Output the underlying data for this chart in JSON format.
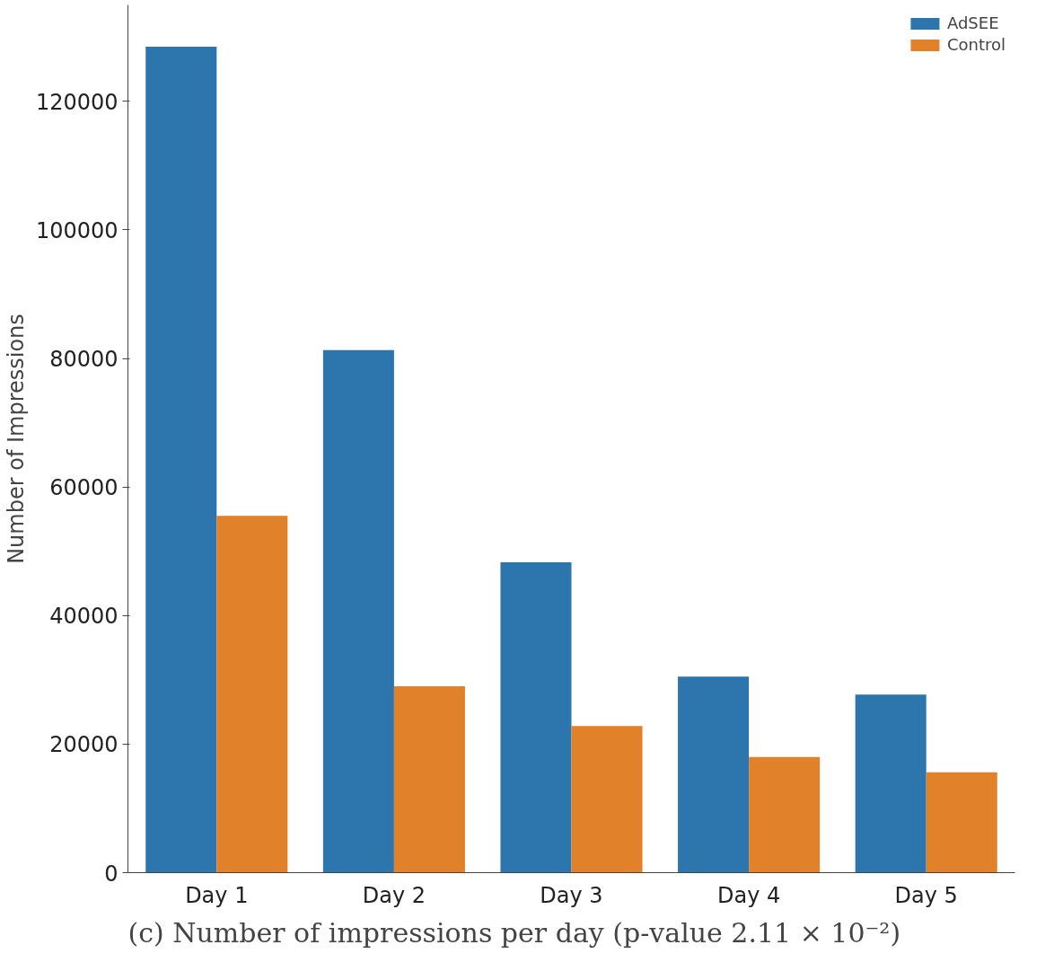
{
  "chart_data": {
    "type": "bar",
    "ylabel": "Number of Impressions",
    "categories": [
      "Day 1",
      "Day 2",
      "Day 3",
      "Day 4",
      "Day 5"
    ],
    "series": [
      {
        "name": "AdSEE",
        "color": "#2c75ad",
        "values": [
          128500,
          81300,
          48300,
          30500,
          27700
        ]
      },
      {
        "name": "Control",
        "color": "#e1822b",
        "values": [
          55500,
          29000,
          22800,
          18000,
          15600
        ]
      }
    ],
    "ylim": [
      0,
      135000
    ],
    "yticks": [
      0,
      20000,
      40000,
      60000,
      80000,
      100000,
      120000
    ],
    "grid": false,
    "legend": "top right",
    "annotations": [
      "(c) Number of impressions per day (p-value 2.11 × 10⁻²)"
    ]
  }
}
